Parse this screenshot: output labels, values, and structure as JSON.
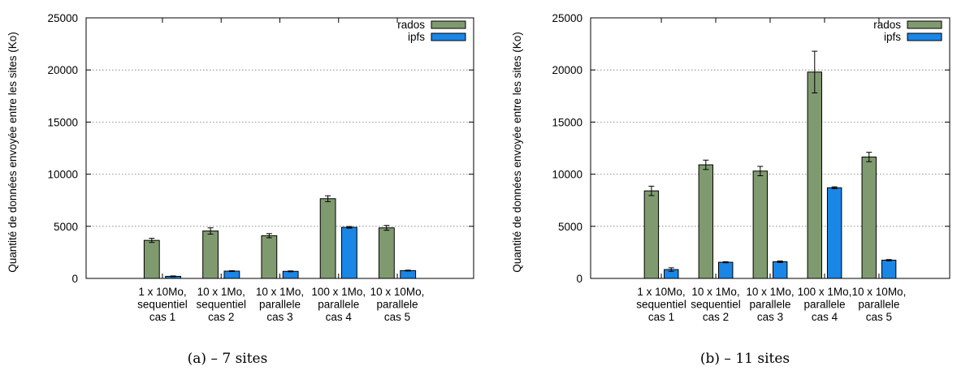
{
  "colors": {
    "rados": "#7f9a6f",
    "ipfs": "#1a86e6"
  },
  "chart_data": [
    {
      "type": "bar",
      "caption": "(a) – 7 sites",
      "ylabel": "Quantité de données envoyée entre les sites (Ko)",
      "ylim": [
        0,
        25000
      ],
      "yticks": [
        0,
        5000,
        10000,
        15000,
        20000,
        25000
      ],
      "grid": true,
      "legend_position": "top-right",
      "categories": [
        [
          "1 x 10Mo,",
          "sequentiel",
          "cas 1"
        ],
        [
          "10 x 1Mo,",
          "sequentiel",
          "cas 2"
        ],
        [
          "10 x 1Mo,",
          "parallele",
          "cas 3"
        ],
        [
          "100 x 1Mo,",
          "parallele",
          "cas 4"
        ],
        [
          "10 x 10Mo,",
          "parallele",
          "cas 5"
        ]
      ],
      "series": [
        {
          "name": "rados",
          "values": [
            3650,
            4550,
            4100,
            7650,
            4850
          ],
          "errors": [
            200,
            300,
            200,
            280,
            230
          ]
        },
        {
          "name": "ipfs",
          "values": [
            200,
            700,
            680,
            4900,
            750
          ],
          "errors": [
            40,
            40,
            40,
            80,
            40
          ]
        }
      ]
    },
    {
      "type": "bar",
      "caption": "(b) – 11 sites",
      "ylabel": "Quantité de données envoyée entre les sites (Ko)",
      "ylim": [
        0,
        25000
      ],
      "yticks": [
        0,
        5000,
        10000,
        15000,
        20000,
        25000
      ],
      "grid": true,
      "legend_position": "top-right",
      "categories": [
        [
          "1 x 10Mo,",
          "sequentiel",
          "cas 1"
        ],
        [
          "10 x 1Mo,",
          "sequentiel",
          "cas 2"
        ],
        [
          "10 x 1Mo,",
          "parallele",
          "cas 3"
        ],
        [
          "100 x 1Mo,",
          "parallele",
          "cas 4"
        ],
        [
          "10 x 10Mo,",
          "parallele",
          "cas 5"
        ]
      ],
      "series": [
        {
          "name": "rados",
          "values": [
            8400,
            10900,
            10300,
            19800,
            11650
          ],
          "errors": [
            450,
            450,
            450,
            2000,
            450
          ]
        },
        {
          "name": "ipfs",
          "values": [
            850,
            1550,
            1600,
            8700,
            1750
          ],
          "errors": [
            170,
            50,
            70,
            90,
            60
          ]
        }
      ]
    }
  ]
}
